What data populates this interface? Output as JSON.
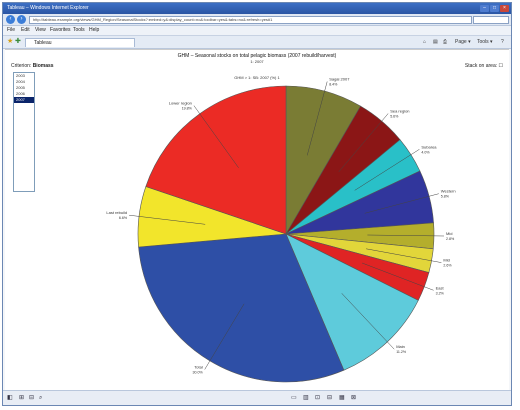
{
  "window": {
    "title": "Tableau – Windows Internet Explorer"
  },
  "address": {
    "url": "http://tableau.example.org/views/GHM_Region/SeasonalStocks?:embed=y&:display_count=no&:toolbar=yes&:tabs=no&:refresh=yes#1"
  },
  "menu": [
    "File",
    "Edit",
    "View",
    "Favorites",
    "Tools",
    "Help"
  ],
  "tab": {
    "label": "Tableau"
  },
  "toolbar": {
    "home": "⌂",
    "feeds": "▤",
    "print": "⎙",
    "page": "Page ▾",
    "tools": "Tools ▾",
    "help": "?"
  },
  "report": {
    "title": "GHM – Seasonal stocks on total pelagic biomass (2007 rebuild/harvest)",
    "subtitle": "1: 2007",
    "caption": "GHM > 1: SB: 2007 (%) 1",
    "criterion_label": "Criterion:",
    "criterion_value": "Biomass",
    "stack_label": "Stack on area:",
    "years": [
      "2003",
      "2004",
      "2005",
      "2006",
      "2007"
    ],
    "selected_year_index": 4
  },
  "chart_data": {
    "type": "pie",
    "slices": [
      {
        "name": "Sagal 2007",
        "value": 8.4,
        "color": "#7a7c34"
      },
      {
        "name": "Sea region",
        "value": 5.6,
        "color": "#8b1616"
      },
      {
        "name": "Subarea",
        "value": 4.0,
        "color": "#29c0c8"
      },
      {
        "name": "Western",
        "value": 5.8,
        "color": "#31369c"
      },
      {
        "name": "Mid",
        "value": 2.8,
        "color": "#b4ae2c"
      },
      {
        "name": "Mid",
        "value": 2.6,
        "color": "#e2d63a"
      },
      {
        "name": "East",
        "value": 3.2,
        "color": "#df2424"
      },
      {
        "name": "Main",
        "value": 11.2,
        "color": "#5ecbdb"
      },
      {
        "name": "Total",
        "value": 30.0,
        "color": "#2e4fa6"
      },
      {
        "name": "Last rebuild",
        "value": 6.6,
        "color": "#f2e52b"
      },
      {
        "name": "Lower region",
        "value": 19.8,
        "color": "#eb2b25"
      }
    ]
  },
  "status": {
    "left_icons": [
      "◧",
      "⊞",
      "⊟",
      "⌕"
    ],
    "right_icons": [
      "▭",
      "▥",
      "⊡",
      "⊟",
      "▦",
      "⊠"
    ]
  }
}
